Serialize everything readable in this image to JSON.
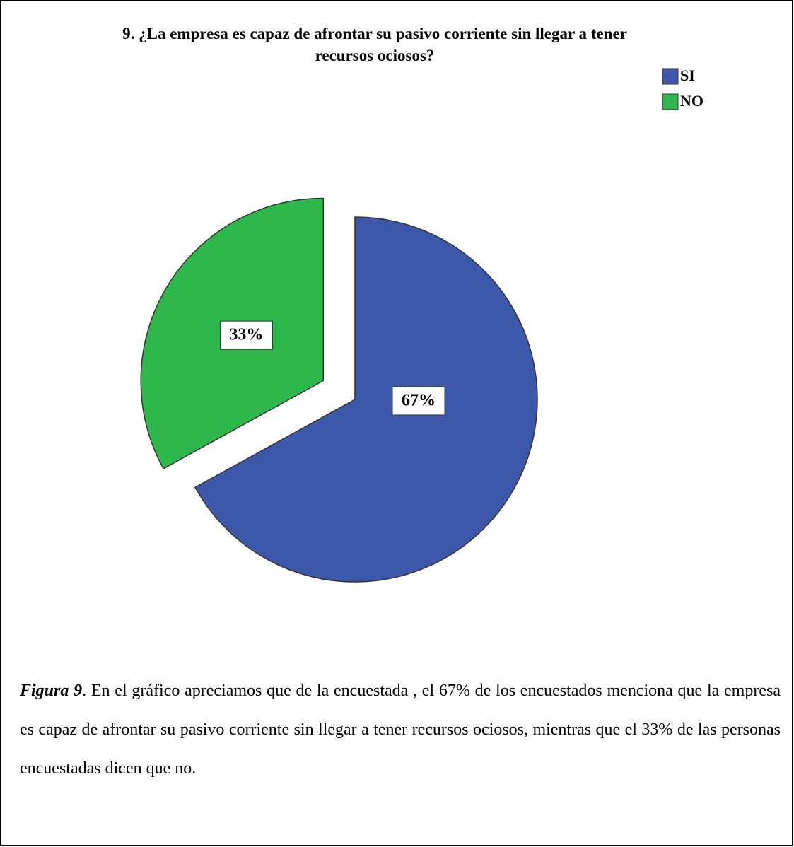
{
  "chart_data": {
    "type": "pie",
    "title": "9. ¿La empresa es capaz de afrontar su pasivo corriente sin llegar a tener",
    "subtitle": "recursos ociosos?",
    "categories": [
      "SI",
      "NO"
    ],
    "values": [
      67,
      33
    ],
    "value_labels": [
      "67%",
      "33%"
    ],
    "colors": [
      "#3d57aa",
      "#2eb84b"
    ],
    "legend": "top-right"
  },
  "caption": {
    "label": "Figura 9",
    "text": ". En el gráfico apreciamos que de la encuestada , el 67% de los encuestados menciona que la empresa es capaz de afrontar su pasivo corriente sin llegar a tener recursos ociosos, mientras que el 33% de las personas encuestadas dicen que no."
  }
}
